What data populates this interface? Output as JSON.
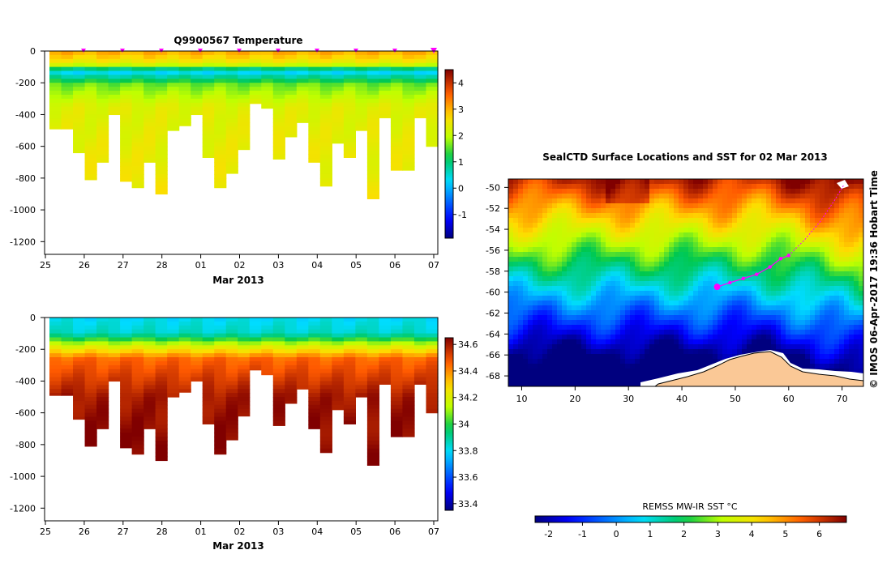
{
  "chart_data": [
    {
      "type": "heatmap",
      "title": "Q9900567  Temperature",
      "xlabel": "Mar 2013",
      "ylabel": "",
      "x_tick_labels": [
        "25",
        "26",
        "27",
        "28",
        "01",
        "02",
        "03",
        "04",
        "05",
        "06",
        "07"
      ],
      "y_tick_values": [
        0,
        -200,
        -400,
        -600,
        -800,
        -1000,
        -1200
      ],
      "ylim": [
        -1280,
        0
      ],
      "profile_depths": [
        490,
        490,
        640,
        810,
        700,
        400,
        820,
        860,
        700,
        900,
        500,
        470,
        400,
        670,
        860,
        770,
        620,
        330,
        360,
        680,
        540,
        450,
        700,
        850,
        580,
        670,
        500,
        930,
        420,
        750,
        750,
        420,
        600
      ],
      "surface_markers_count": 10,
      "colorbar": {
        "ticks": [
          4,
          3,
          2,
          1,
          0,
          -1
        ],
        "range": [
          -1.9,
          4.5
        ],
        "palette": "jet"
      },
      "value_profile": [
        {
          "depth": 0,
          "value": 3.1
        },
        {
          "depth": 80,
          "value": 2.4
        },
        {
          "depth": 130,
          "value": 0.2
        },
        {
          "depth": 210,
          "value": 1.6
        },
        {
          "depth": 350,
          "value": 2.3
        },
        {
          "depth": 900,
          "value": 2.5
        }
      ]
    },
    {
      "type": "heatmap",
      "title": "",
      "xlabel": "Mar 2013",
      "ylabel": "",
      "x_tick_labels": [
        "25",
        "26",
        "27",
        "28",
        "01",
        "02",
        "03",
        "04",
        "05",
        "06",
        "07"
      ],
      "y_tick_values": [
        0,
        -200,
        -400,
        -600,
        -800,
        -1000,
        -1200
      ],
      "ylim": [
        -1280,
        0
      ],
      "profile_depths": [
        490,
        490,
        640,
        810,
        700,
        400,
        820,
        860,
        700,
        900,
        500,
        470,
        400,
        670,
        860,
        770,
        620,
        330,
        360,
        680,
        540,
        450,
        700,
        850,
        580,
        670,
        500,
        930,
        420,
        750,
        750,
        420,
        600
      ],
      "colorbar": {
        "ticks": [
          "34.6",
          "34.4",
          "34.2",
          "34",
          "33.8",
          "33.6",
          "33.4"
        ],
        "range": [
          33.35,
          34.65
        ],
        "palette": "jet"
      },
      "value_profile": [
        {
          "depth": 0,
          "value": 33.8
        },
        {
          "depth": 100,
          "value": 33.85
        },
        {
          "depth": 170,
          "value": 34.15
        },
        {
          "depth": 260,
          "value": 34.45
        },
        {
          "depth": 500,
          "value": 34.6
        },
        {
          "depth": 900,
          "value": 34.65
        }
      ]
    },
    {
      "type": "heatmap",
      "title": "SealCTD Surface Locations and SST for 02 Mar 2013",
      "x_tick_labels": [
        "10",
        "20",
        "30",
        "40",
        "50",
        "60",
        "70"
      ],
      "y_tick_labels": [
        "-50",
        "-52",
        "-54",
        "-56",
        "-58",
        "-60",
        "-62",
        "-64",
        "-66",
        "-68"
      ],
      "xlim": [
        7.5,
        74
      ],
      "ylim": [
        -69,
        -49.2
      ],
      "track_points": [
        {
          "lon": 46.6,
          "lat": -59.5
        },
        {
          "lon": 49.0,
          "lat": -59.1
        },
        {
          "lon": 51.5,
          "lat": -58.7
        },
        {
          "lon": 54.0,
          "lat": -58.3
        },
        {
          "lon": 56.5,
          "lat": -57.6
        },
        {
          "lon": 58.5,
          "lat": -56.8
        },
        {
          "lon": 60.0,
          "lat": -56.5
        }
      ],
      "track_path": [
        {
          "lon": 60.0,
          "lat": -56.5
        },
        {
          "lon": 63.0,
          "lat": -55.0
        },
        {
          "lon": 66.0,
          "lat": -53.2
        },
        {
          "lon": 68.5,
          "lat": -51.3
        },
        {
          "lon": 70.3,
          "lat": -49.8
        }
      ],
      "colorbar": {
        "label": "REMSS MW-IR SST °C",
        "ticks": [
          "-2",
          "-1",
          "0",
          "1",
          "2",
          "3",
          "4",
          "5",
          "6"
        ],
        "range": [
          -2.4,
          6.8
        ]
      },
      "watermark": "© IMOS 06-Apr-2017 19:36 Hobart Time"
    }
  ],
  "colors": {
    "marker": "#ff00ff",
    "land": "#fac896",
    "sea_ice": "#ffffff"
  }
}
